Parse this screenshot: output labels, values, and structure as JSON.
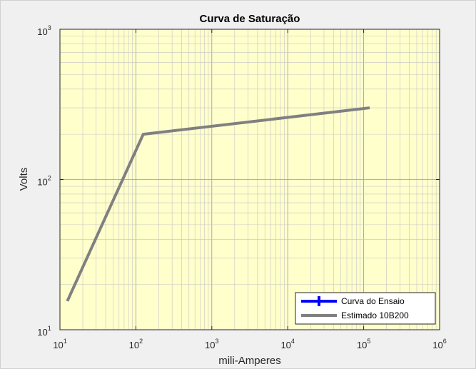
{
  "chart_data": {
    "type": "line",
    "title": "Curva de Saturação",
    "xlabel": "mili-Amperes",
    "ylabel": "Volts",
    "xscale": "log",
    "yscale": "log",
    "xlim": [
      10,
      1000000
    ],
    "ylim": [
      10,
      1000
    ],
    "grid": true,
    "minor_grid": true,
    "x_ticks": [
      10,
      100,
      1000,
      10000,
      100000,
      1000000
    ],
    "x_tick_labels": [
      {
        "base": "10",
        "exp": "1"
      },
      {
        "base": "10",
        "exp": "2"
      },
      {
        "base": "10",
        "exp": "3"
      },
      {
        "base": "10",
        "exp": "4"
      },
      {
        "base": "10",
        "exp": "5"
      },
      {
        "base": "10",
        "exp": "6"
      }
    ],
    "y_ticks": [
      10,
      100,
      1000
    ],
    "y_tick_labels": [
      {
        "base": "10",
        "exp": "1"
      },
      {
        "base": "10",
        "exp": "2"
      },
      {
        "base": "10",
        "exp": "3"
      }
    ],
    "legend_position": "bottom-right",
    "series": [
      {
        "name": "Curva do Ensaio",
        "color": "#0000ff",
        "marker": "plus",
        "x": [],
        "y": []
      },
      {
        "name": "Estimado 10B200",
        "color": "#808080",
        "x": [
          12.5,
          125,
          120000
        ],
        "y": [
          15.5,
          200,
          300
        ]
      }
    ]
  }
}
